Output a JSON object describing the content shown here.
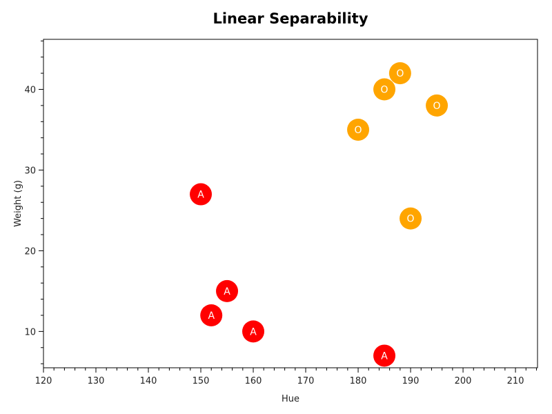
{
  "chart_data": {
    "type": "scatter",
    "title": "Linear Separability",
    "xlabel": "Hue",
    "ylabel": "Weight (g)",
    "xlim": [
      120,
      214.2
    ],
    "ylim": [
      5.5,
      46.2
    ],
    "xticks": [
      120,
      130,
      140,
      150,
      160,
      170,
      180,
      190,
      200,
      210
    ],
    "yticks": [
      10,
      20,
      30,
      40
    ],
    "grid": false,
    "series": [
      {
        "label": "A",
        "color": "#ff0000",
        "points": [
          [
            150,
            27
          ],
          [
            155,
            15
          ],
          [
            152,
            12
          ],
          [
            160,
            10
          ],
          [
            185,
            7
          ]
        ]
      },
      {
        "label": "O",
        "color": "#ffa500",
        "points": [
          [
            180,
            35
          ],
          [
            185,
            40
          ],
          [
            188,
            42
          ],
          [
            195,
            38
          ],
          [
            190,
            24
          ]
        ]
      }
    ]
  }
}
